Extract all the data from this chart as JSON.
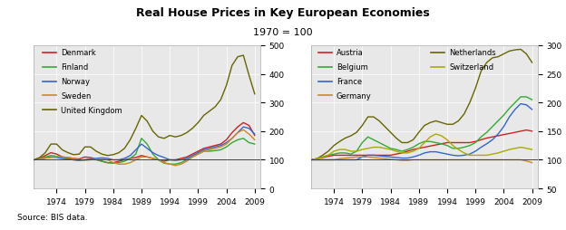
{
  "title": "Real House Prices in Key European Economies",
  "subtitle": "1970 = 100",
  "source": "Source: BIS data.",
  "years": [
    1970,
    1971,
    1972,
    1973,
    1974,
    1975,
    1976,
    1977,
    1978,
    1979,
    1980,
    1981,
    1982,
    1983,
    1984,
    1985,
    1986,
    1987,
    1988,
    1989,
    1990,
    1991,
    1992,
    1993,
    1994,
    1995,
    1996,
    1997,
    1998,
    1999,
    2000,
    2001,
    2002,
    2003,
    2004,
    2005,
    2006,
    2007,
    2008,
    2009
  ],
  "left_panel": {
    "Denmark": [
      100,
      105,
      115,
      125,
      120,
      110,
      108,
      105,
      103,
      110,
      108,
      102,
      95,
      90,
      90,
      95,
      100,
      105,
      108,
      115,
      110,
      105,
      100,
      95,
      100,
      100,
      105,
      110,
      120,
      130,
      140,
      145,
      150,
      155,
      170,
      195,
      215,
      230,
      220,
      185
    ],
    "Finland": [
      100,
      105,
      110,
      115,
      112,
      108,
      105,
      100,
      98,
      100,
      102,
      100,
      95,
      90,
      88,
      90,
      95,
      105,
      120,
      175,
      155,
      120,
      100,
      88,
      85,
      85,
      90,
      100,
      110,
      120,
      130,
      130,
      132,
      135,
      145,
      160,
      170,
      175,
      160,
      155
    ],
    "Norway": [
      100,
      103,
      106,
      110,
      108,
      105,
      103,
      100,
      98,
      100,
      103,
      105,
      107,
      105,
      100,
      100,
      105,
      115,
      135,
      155,
      140,
      125,
      115,
      108,
      100,
      98,
      100,
      105,
      115,
      125,
      135,
      140,
      145,
      150,
      160,
      175,
      195,
      215,
      210,
      190
    ],
    "Sweden": [
      100,
      103,
      106,
      108,
      110,
      110,
      108,
      105,
      100,
      98,
      100,
      102,
      104,
      100,
      90,
      85,
      85,
      90,
      100,
      110,
      110,
      105,
      100,
      90,
      85,
      80,
      85,
      95,
      110,
      120,
      130,
      135,
      140,
      145,
      155,
      175,
      195,
      205,
      190,
      170
    ],
    "United Kingdom": [
      100,
      108,
      125,
      155,
      155,
      135,
      125,
      118,
      120,
      145,
      145,
      130,
      120,
      115,
      118,
      125,
      140,
      170,
      210,
      255,
      235,
      200,
      180,
      175,
      185,
      180,
      185,
      195,
      210,
      230,
      255,
      270,
      285,
      310,
      360,
      430,
      460,
      465,
      395,
      330
    ]
  },
  "left_colors": {
    "Denmark": "#cc2222",
    "Finland": "#33aa33",
    "Norway": "#3366cc",
    "Sweden": "#cc8822",
    "United Kingdom": "#666600"
  },
  "left_ylim": [
    0,
    500
  ],
  "left_yticks": [
    0,
    100,
    200,
    300,
    400,
    500
  ],
  "right_panel": {
    "Austria": [
      100,
      102,
      104,
      106,
      108,
      108,
      108,
      108,
      108,
      108,
      108,
      108,
      108,
      108,
      108,
      110,
      112,
      115,
      118,
      120,
      122,
      124,
      126,
      128,
      130,
      130,
      130,
      130,
      130,
      132,
      135,
      138,
      140,
      142,
      144,
      146,
      148,
      150,
      152,
      150
    ],
    "Belgium": [
      100,
      102,
      105,
      108,
      110,
      112,
      112,
      110,
      115,
      130,
      140,
      135,
      130,
      125,
      120,
      118,
      115,
      118,
      122,
      128,
      132,
      132,
      130,
      128,
      125,
      120,
      120,
      122,
      125,
      130,
      140,
      148,
      158,
      168,
      178,
      190,
      200,
      210,
      210,
      205
    ],
    "France": [
      100,
      100,
      100,
      100,
      100,
      100,
      100,
      100,
      100,
      105,
      108,
      108,
      107,
      106,
      105,
      104,
      103,
      103,
      105,
      108,
      112,
      114,
      114,
      112,
      110,
      108,
      107,
      108,
      110,
      115,
      122,
      128,
      135,
      145,
      158,
      175,
      188,
      198,
      196,
      188
    ],
    "Germany": [
      100,
      100,
      100,
      100,
      100,
      102,
      103,
      104,
      105,
      105,
      105,
      104,
      103,
      102,
      101,
      100,
      99,
      99,
      100,
      100,
      100,
      100,
      100,
      100,
      100,
      100,
      100,
      100,
      100,
      100,
      100,
      100,
      100,
      100,
      100,
      100,
      100,
      100,
      98,
      95
    ],
    "Netherlands": [
      100,
      102,
      108,
      115,
      125,
      132,
      138,
      142,
      148,
      160,
      175,
      175,
      168,
      158,
      148,
      138,
      130,
      130,
      135,
      148,
      160,
      165,
      168,
      165,
      162,
      162,
      168,
      180,
      200,
      225,
      255,
      270,
      278,
      280,
      285,
      290,
      292,
      293,
      285,
      270
    ],
    "Switzerland": [
      100,
      102,
      105,
      108,
      115,
      118,
      118,
      115,
      115,
      118,
      120,
      122,
      122,
      120,
      118,
      115,
      112,
      112,
      115,
      120,
      130,
      140,
      145,
      142,
      135,
      125,
      118,
      112,
      108,
      108,
      108,
      108,
      110,
      112,
      115,
      118,
      120,
      122,
      120,
      118
    ]
  },
  "right_colors": {
    "Austria": "#cc2222",
    "Belgium": "#33aa33",
    "France": "#3366cc",
    "Germany": "#cc8822",
    "Netherlands": "#666600",
    "Switzerland": "#aaaa00"
  },
  "right_ylim": [
    50,
    300
  ],
  "right_yticks": [
    50,
    100,
    150,
    200,
    250,
    300
  ],
  "xticks": [
    1974,
    1979,
    1984,
    1989,
    1994,
    1999,
    2004,
    2009
  ],
  "background_color": "#e8e8e8"
}
